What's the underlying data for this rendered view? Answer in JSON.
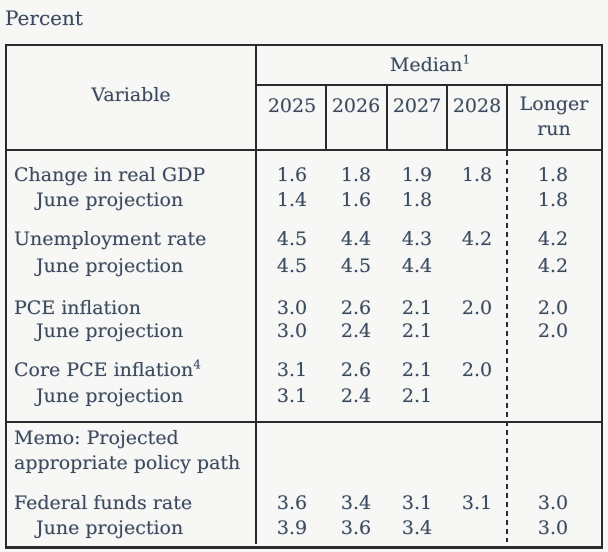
{
  "page": {
    "unit_label": "Percent"
  },
  "table": {
    "header": {
      "variable_label": "Variable",
      "median_label": "Median",
      "median_sup": "1",
      "years": [
        "2025",
        "2026",
        "2027",
        "2028"
      ],
      "longer_run_label": "Longer run"
    },
    "columns": [
      "2025",
      "2026",
      "2027",
      "2028",
      "Longer run"
    ],
    "rows": [
      {
        "label": "Change in real GDP",
        "sup": "",
        "indent": false,
        "values": [
          "1.6",
          "1.8",
          "1.9",
          "1.8",
          "1.8"
        ]
      },
      {
        "label": "June projection",
        "sup": "",
        "indent": true,
        "values": [
          "1.4",
          "1.6",
          "1.8",
          "",
          "1.8"
        ]
      },
      {
        "label": "Unemployment rate",
        "sup": "",
        "indent": false,
        "values": [
          "4.5",
          "4.4",
          "4.3",
          "4.2",
          "4.2"
        ]
      },
      {
        "label": "June projection",
        "sup": "",
        "indent": true,
        "values": [
          "4.5",
          "4.5",
          "4.4",
          "",
          "4.2"
        ]
      },
      {
        "label": "PCE inflation",
        "sup": "",
        "indent": false,
        "values": [
          "3.0",
          "2.6",
          "2.1",
          "2.0",
          "2.0"
        ]
      },
      {
        "label": "June projection",
        "sup": "",
        "indent": true,
        "values": [
          "3.0",
          "2.4",
          "2.1",
          "",
          "2.0"
        ]
      },
      {
        "label": "Core PCE inflation",
        "sup": "4",
        "indent": false,
        "values": [
          "3.1",
          "2.6",
          "2.1",
          "2.0",
          ""
        ]
      },
      {
        "label": "June projection",
        "sup": "",
        "indent": true,
        "values": [
          "3.1",
          "2.4",
          "2.1",
          "",
          ""
        ]
      },
      {
        "label": "Federal funds rate",
        "sup": "",
        "indent": false,
        "values": [
          "3.6",
          "3.4",
          "3.1",
          "3.1",
          "3.0"
        ]
      },
      {
        "label": "June projection",
        "sup": "",
        "indent": true,
        "values": [
          "3.9",
          "3.6",
          "3.4",
          "",
          "3.0"
        ]
      }
    ],
    "memo": {
      "line1": "Memo: Projected",
      "line2": "appropriate policy path"
    }
  }
}
